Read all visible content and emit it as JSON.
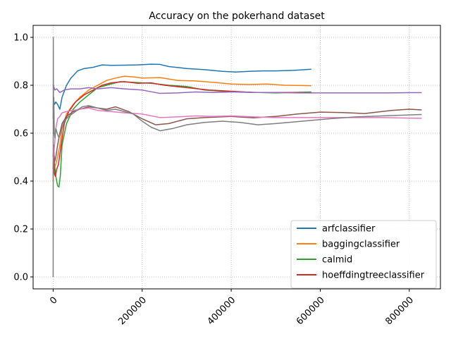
{
  "chart_data": {
    "type": "line",
    "title": "Accuracy on the pokerhand dataset",
    "xlabel": "",
    "ylabel": "",
    "xlim": [
      -45000,
      870000
    ],
    "ylim": [
      -0.05,
      1.05
    ],
    "x_ticks": [
      0,
      200000,
      400000,
      600000,
      800000
    ],
    "x_tick_labels": [
      "0",
      "200000",
      "400000",
      "600000",
      "800000"
    ],
    "x_tick_rotation_deg": 45,
    "y_ticks": [
      0.0,
      0.2,
      0.4,
      0.6,
      0.8,
      1.0
    ],
    "y_tick_labels": [
      "0.0",
      "0.2",
      "0.4",
      "0.6",
      "0.8",
      "1.0"
    ],
    "grid": true,
    "legend_position": "lower-right",
    "series": [
      {
        "name": "arfclassifier",
        "color": "#1f77b4",
        "x": [
          0,
          1000,
          3000,
          6000,
          10000,
          15000,
          20000,
          30000,
          40000,
          55000,
          70000,
          90000,
          110000,
          130000,
          160000,
          190000,
          220000,
          240000,
          260000,
          300000,
          340000,
          380000,
          410000,
          440000,
          470000,
          500000,
          540000,
          580000
        ],
        "y": [
          0.7,
          0.74,
          0.72,
          0.73,
          0.72,
          0.7,
          0.75,
          0.8,
          0.83,
          0.86,
          0.87,
          0.875,
          0.885,
          0.883,
          0.884,
          0.885,
          0.888,
          0.887,
          0.878,
          0.87,
          0.865,
          0.858,
          0.855,
          0.858,
          0.86,
          0.86,
          0.862,
          0.867
        ]
      },
      {
        "name": "baggingclassifier",
        "color": "#ff7f0e",
        "x": [
          0,
          1000,
          3000,
          6000,
          10000,
          15000,
          20000,
          30000,
          45000,
          60000,
          80000,
          100000,
          120000,
          140000,
          160000,
          180000,
          200000,
          240000,
          280000,
          320000,
          360000,
          400000,
          440000,
          480000,
          520000,
          580000
        ],
        "y": [
          0.4,
          0.5,
          0.46,
          0.47,
          0.5,
          0.55,
          0.62,
          0.68,
          0.72,
          0.75,
          0.78,
          0.8,
          0.82,
          0.83,
          0.838,
          0.835,
          0.83,
          0.832,
          0.82,
          0.818,
          0.812,
          0.805,
          0.803,
          0.805,
          0.8,
          0.798
        ]
      },
      {
        "name": "calmid",
        "color": "#2ca02c",
        "x": [
          0,
          1000,
          3000,
          6000,
          10000,
          13000,
          16000,
          20000,
          30000,
          45000,
          60000,
          80000,
          100000,
          120000,
          150000,
          180000,
          220000,
          260000,
          300000,
          340000,
          380000,
          420000,
          460000,
          500000,
          540000,
          580000
        ],
        "y": [
          0.45,
          0.55,
          0.47,
          0.42,
          0.38,
          0.375,
          0.42,
          0.55,
          0.64,
          0.7,
          0.73,
          0.76,
          0.79,
          0.8,
          0.815,
          0.812,
          0.808,
          0.8,
          0.795,
          0.78,
          0.775,
          0.772,
          0.77,
          0.768,
          0.77,
          0.772
        ]
      },
      {
        "name": "hoeffdingtreeclassifier",
        "color": "#d62728",
        "x": [
          0,
          1000,
          3000,
          5000,
          8000,
          12000,
          18000,
          25000,
          35000,
          50000,
          70000,
          90000,
          110000,
          130000,
          160000,
          190000,
          220000,
          250000,
          300000,
          350000,
          400000,
          450000,
          500000,
          540000,
          580000
        ],
        "y": [
          0.45,
          0.48,
          0.43,
          0.42,
          0.45,
          0.47,
          0.55,
          0.64,
          0.69,
          0.73,
          0.76,
          0.78,
          0.8,
          0.81,
          0.815,
          0.808,
          0.81,
          0.8,
          0.79,
          0.78,
          0.775,
          0.77,
          0.77,
          0.77,
          0.768
        ]
      },
      {
        "name": "",
        "color": "#9467bd",
        "x": [
          0,
          800,
          2000,
          4000,
          8000,
          15000,
          25000,
          40000,
          60000,
          80000,
          100000,
          130000,
          160000,
          200000,
          240000,
          280000,
          320000,
          360000,
          400000,
          450000,
          500000,
          550000,
          600000,
          650000,
          700000,
          750000,
          800000,
          828000
        ],
        "y": [
          0.66,
          0.8,
          0.79,
          0.78,
          0.785,
          0.77,
          0.78,
          0.785,
          0.785,
          0.79,
          0.785,
          0.79,
          0.785,
          0.78,
          0.766,
          0.768,
          0.772,
          0.77,
          0.772,
          0.77,
          0.77,
          0.768,
          0.768,
          0.768,
          0.768,
          0.768,
          0.769,
          0.769
        ]
      },
      {
        "name": "",
        "color": "#8c564b",
        "x": [
          0,
          1000,
          3000,
          6000,
          10000,
          15000,
          20000,
          30000,
          45000,
          60000,
          80000,
          100000,
          120000,
          140000,
          170000,
          200000,
          230000,
          260000,
          300000,
          340000,
          400000,
          450000,
          500000,
          550000,
          600000,
          650000,
          700000,
          760000,
          800000,
          828000
        ],
        "y": [
          0.5,
          0.55,
          0.48,
          0.5,
          0.55,
          0.6,
          0.64,
          0.67,
          0.69,
          0.7,
          0.71,
          0.705,
          0.7,
          0.71,
          0.69,
          0.66,
          0.635,
          0.64,
          0.66,
          0.665,
          0.67,
          0.664,
          0.67,
          0.68,
          0.688,
          0.686,
          0.682,
          0.695,
          0.7,
          0.697
        ]
      },
      {
        "name": "",
        "color": "#e377c2",
        "x": [
          0,
          1000,
          3000,
          6000,
          10000,
          15000,
          20000,
          30000,
          45000,
          60000,
          80000,
          100000,
          130000,
          160000,
          200000,
          240000,
          280000,
          320000,
          360000,
          400000,
          450000,
          500000,
          560000,
          620000,
          680000,
          740000,
          800000,
          828000
        ],
        "y": [
          0.42,
          0.5,
          0.55,
          0.62,
          0.66,
          0.67,
          0.685,
          0.69,
          0.695,
          0.7,
          0.705,
          0.695,
          0.69,
          0.685,
          0.68,
          0.665,
          0.668,
          0.672,
          0.67,
          0.672,
          0.668,
          0.665,
          0.665,
          0.665,
          0.665,
          0.665,
          0.663,
          0.662
        ]
      },
      {
        "name": "",
        "color": "#7f7f7f",
        "x": [
          0,
          300,
          800,
          1500,
          2500,
          4000,
          6000,
          9000,
          13000,
          18000,
          25000,
          35000,
          50000,
          65000,
          80000,
          100000,
          120000,
          140000,
          160000,
          180000,
          200000,
          220000,
          240000,
          270000,
          300000,
          340000,
          380000,
          420000,
          460000,
          500000,
          560000,
          620000,
          680000,
          740000,
          800000,
          828000
        ],
        "y": [
          0.0,
          1.0,
          0.65,
          0.75,
          0.6,
          0.58,
          0.62,
          0.6,
          0.58,
          0.61,
          0.65,
          0.67,
          0.69,
          0.71,
          0.715,
          0.705,
          0.695,
          0.7,
          0.69,
          0.68,
          0.65,
          0.625,
          0.61,
          0.62,
          0.635,
          0.645,
          0.65,
          0.645,
          0.635,
          0.64,
          0.65,
          0.66,
          0.668,
          0.672,
          0.676,
          0.678
        ]
      }
    ]
  }
}
